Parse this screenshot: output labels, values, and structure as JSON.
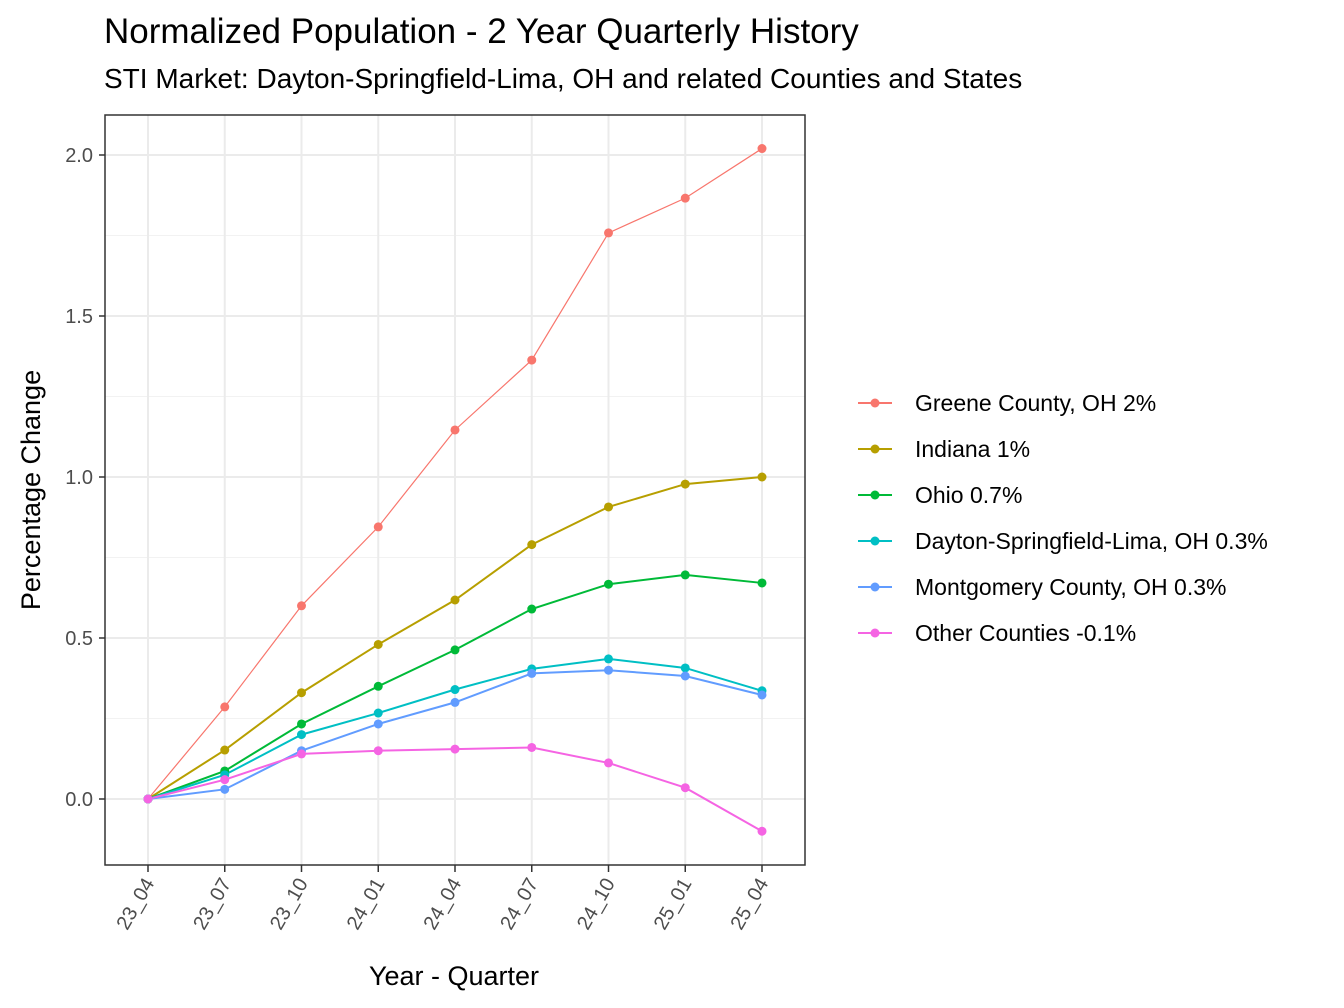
{
  "chart_data": {
    "type": "line",
    "title": "Normalized Population - 2 Year Quarterly History",
    "subtitle": "STI Market: Dayton-Springfield-Lima, OH and related Counties and States",
    "xlabel": "Year - Quarter",
    "ylabel": "Percentage Change",
    "categories": [
      "23_04",
      "23_07",
      "23_10",
      "24_01",
      "24_04",
      "24_07",
      "24_10",
      "25_01",
      "25_04"
    ],
    "ylim": [
      -0.2,
      2.1
    ],
    "yticks": [
      0.0,
      0.5,
      1.0,
      1.5,
      2.0
    ],
    "ytick_labels": [
      "0.0",
      "0.5",
      "1.0",
      "1.5",
      "2.0"
    ],
    "grid": true,
    "legend_position": "right",
    "series": [
      {
        "name": "Greene County, OH 2%",
        "color": "#F8766D",
        "values": [
          0,
          0.286,
          0.6,
          0.845,
          1.146,
          1.363,
          1.758,
          1.866,
          2.02
        ]
      },
      {
        "name": "Indiana 1%",
        "color": "#B79F00",
        "values": [
          0,
          0.152,
          0.33,
          0.48,
          0.618,
          0.79,
          0.907,
          0.978,
          1.0
        ]
      },
      {
        "name": "Ohio 0.7%",
        "color": "#00BA38",
        "values": [
          0,
          0.087,
          0.233,
          0.35,
          0.463,
          0.59,
          0.667,
          0.696,
          0.671
        ]
      },
      {
        "name": "Dayton-Springfield-Lima, OH 0.3%",
        "color": "#00BFC4",
        "values": [
          0,
          0.075,
          0.2,
          0.267,
          0.34,
          0.404,
          0.435,
          0.407,
          0.336
        ]
      },
      {
        "name": "Montgomery County, OH 0.3%",
        "color": "#619CFF",
        "values": [
          0,
          0.03,
          0.15,
          0.233,
          0.3,
          0.39,
          0.4,
          0.382,
          0.323
        ]
      },
      {
        "name": "Other Counties -0.1%",
        "color": "#F564E3",
        "values": [
          0,
          0.06,
          0.14,
          0.15,
          0.155,
          0.16,
          0.112,
          0.035,
          -0.1
        ]
      }
    ]
  }
}
